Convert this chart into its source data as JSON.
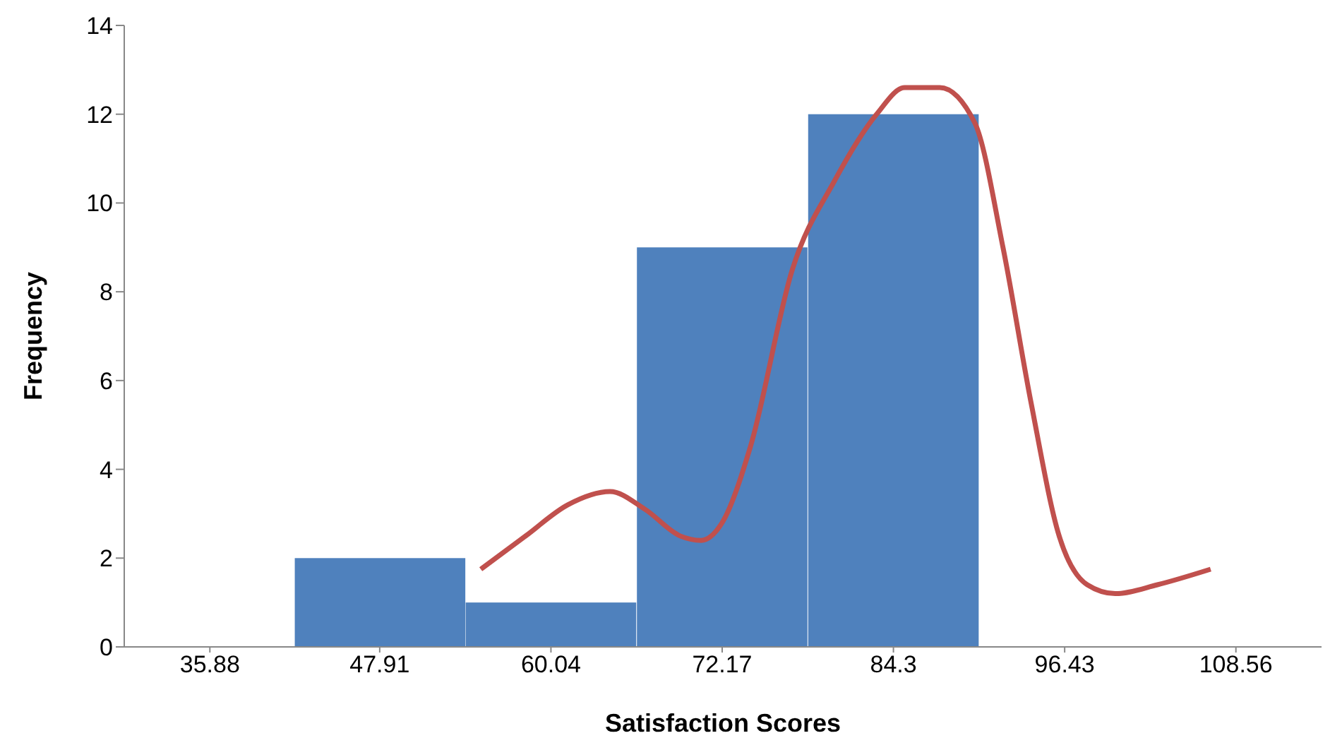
{
  "chart_data": {
    "type": "histogram",
    "xlabel": "Satisfaction Scores",
    "ylabel": "Frequency",
    "bins": [
      41.895,
      53.975,
      66.105,
      78.235,
      90.365
    ],
    "values": [
      2,
      1,
      9,
      12
    ],
    "color": "#4f81bd",
    "xlim": [
      29.815,
      114.625
    ],
    "xticks": [
      35.88,
      47.91,
      60.04,
      72.17,
      84.3,
      96.43,
      108.56
    ],
    "ylim": [
      0,
      14
    ],
    "yticks": [
      0,
      2,
      4,
      6,
      8,
      10,
      12,
      14
    ],
    "grid": false,
    "legend": false,
    "series": [
      {
        "type": "line",
        "color": "#c0504d",
        "marker": "none",
        "line_style": "solid",
        "x": [
          55.07,
          58.25,
          61.23,
          64.22,
          66.7,
          69.19,
          70.68,
          72.17,
          74.16,
          77.14,
          80.13,
          83.11,
          85.1,
          87.58,
          90.07,
          92.06,
          94.05,
          96.04,
          98.03,
          100.01,
          103.0,
          106.77
        ],
        "values": [
          1.75,
          2.5,
          3.2,
          3.5,
          3.1,
          2.5,
          2.4,
          2.8,
          4.5,
          8.5,
          10.5,
          12,
          12.6,
          12.6,
          11.8,
          9,
          5.5,
          2.5,
          1.4,
          1.2,
          1.4,
          1.75
        ]
      }
    ]
  }
}
